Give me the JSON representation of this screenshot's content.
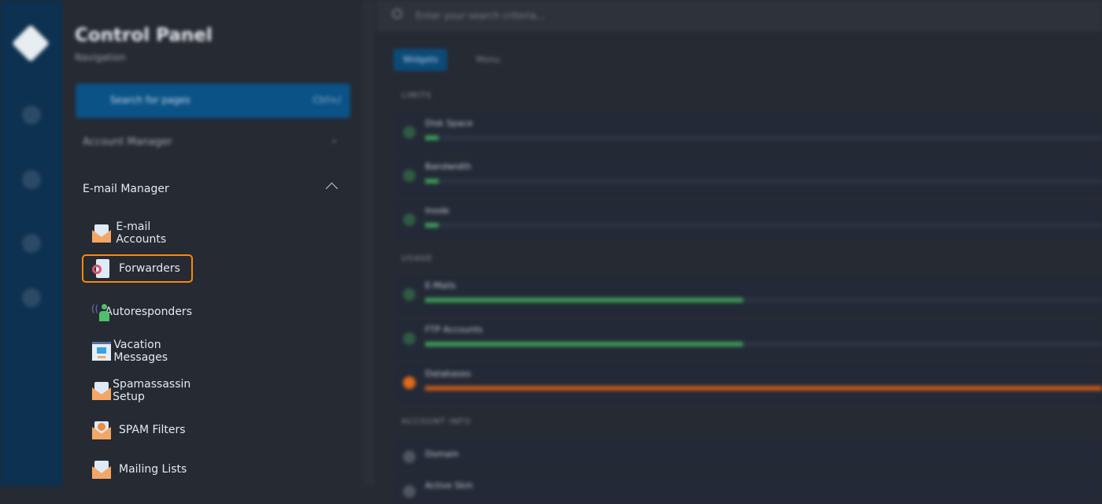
{
  "sidebar": {
    "title": "Control Panel",
    "subtitle": "Navigation",
    "search_placeholder": "Search for pages",
    "search_shortcut": "Ctrl+/",
    "account_manager": "Account Manager",
    "section": "E-mail Manager",
    "items": [
      {
        "label": "E-mail Accounts",
        "icon": "email-accounts-icon"
      },
      {
        "label": "Forwarders",
        "icon": "forwarders-icon",
        "selected": true
      },
      {
        "label": "Autoresponders",
        "icon": "autoresponders-icon"
      },
      {
        "label": "Vacation Messages",
        "icon": "vacation-messages-icon"
      },
      {
        "label": "Spamassassin Setup",
        "icon": "spamassassin-icon"
      },
      {
        "label": "SPAM Filters",
        "icon": "spam-filters-icon"
      },
      {
        "label": "Mailing Lists",
        "icon": "mailing-lists-icon"
      }
    ]
  },
  "main": {
    "search_placeholder": "Enter your search criteria...",
    "tabs": [
      "Widgets",
      "Menu"
    ],
    "limits_label": "LIMITS",
    "usage_label": "USAGE",
    "account_label": "ACCOUNT INFO",
    "limits": [
      {
        "name": "Disk Space",
        "percent": 2
      },
      {
        "name": "Bandwidth",
        "percent": 2
      },
      {
        "name": "Inode",
        "percent": 2
      }
    ],
    "usage": [
      {
        "name": "E-Mails",
        "percent": 47
      },
      {
        "name": "FTP Accounts",
        "percent": 47
      },
      {
        "name": "Databases",
        "percent": 100
      }
    ],
    "account": [
      "Domain",
      "Active Skin"
    ]
  },
  "colors": {
    "highlight": "#f7890e",
    "accent": "#0b5287",
    "good": "#3f9b59",
    "warn": "#e06a1b"
  }
}
